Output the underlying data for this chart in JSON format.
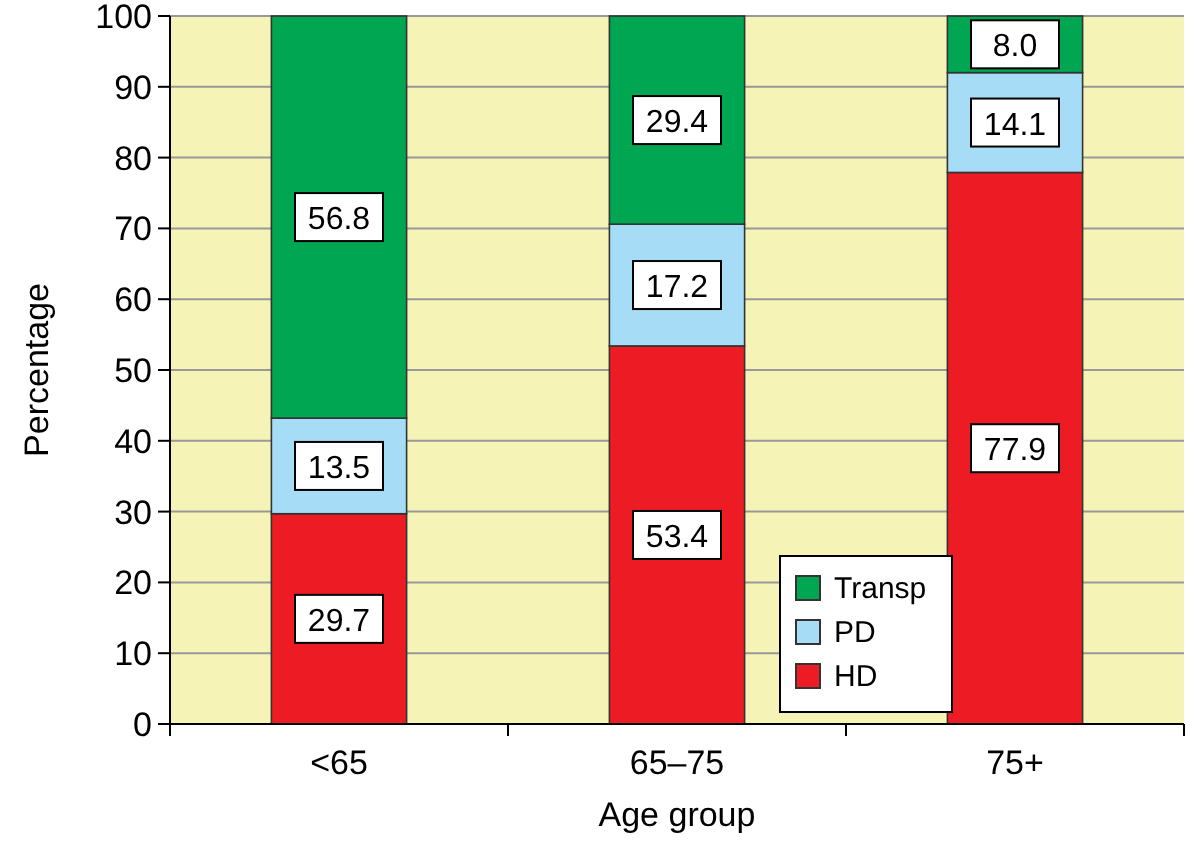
{
  "chart_data": {
    "type": "bar",
    "stacked": true,
    "xlabel": "Age group",
    "ylabel": "Percentage",
    "categories": [
      "<65",
      "65–75",
      "75+"
    ],
    "series": [
      {
        "name": "HD",
        "color": "#ed1c24",
        "values": [
          29.7,
          53.4,
          77.9
        ],
        "value_labels": [
          "29.7",
          "53.4",
          "77.9"
        ]
      },
      {
        "name": "PD",
        "color": "#a6dcf5",
        "values": [
          13.5,
          17.2,
          14.1
        ],
        "value_labels": [
          "13.5",
          "17.2",
          "14.1"
        ]
      },
      {
        "name": "Transp",
        "color": "#00a651",
        "values": [
          56.8,
          29.4,
          8.0
        ],
        "value_labels": [
          "56.8",
          "29.4",
          "8.0"
        ]
      }
    ],
    "ylim": [
      0,
      100
    ],
    "yticks": [
      0,
      10,
      20,
      30,
      40,
      50,
      60,
      70,
      80,
      90,
      100
    ],
    "grid": "y",
    "legend": "bottom right"
  }
}
